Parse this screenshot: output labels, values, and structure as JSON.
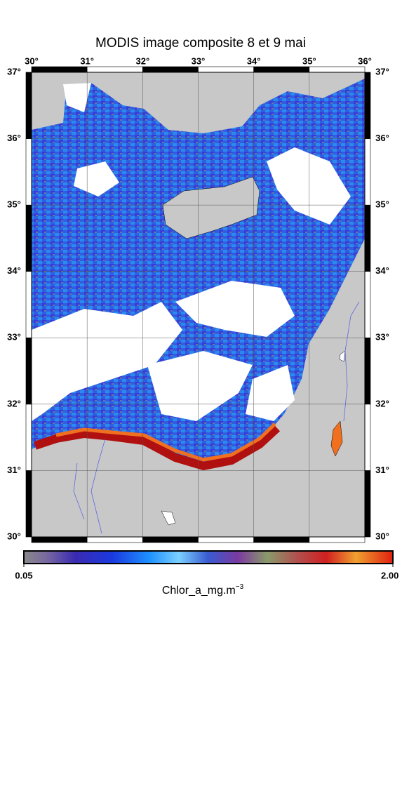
{
  "map": {
    "title": "MODIS image composite 8 et 9 mai",
    "lon": {
      "lim": [
        30,
        36
      ],
      "ticks": [
        {
          "value": 30,
          "label": "30°"
        },
        {
          "value": 31,
          "label": "31°"
        },
        {
          "value": 32,
          "label": "32°"
        },
        {
          "value": 33,
          "label": "33°"
        },
        {
          "value": 34,
          "label": "34°"
        },
        {
          "value": 35,
          "label": "35°"
        },
        {
          "value": 36,
          "label": "36°"
        }
      ]
    },
    "lat": {
      "lim": [
        30,
        37
      ],
      "ticks": [
        {
          "value": 30,
          "label": "30°"
        },
        {
          "value": 31,
          "label": "31°"
        },
        {
          "value": 32,
          "label": "32°"
        },
        {
          "value": 33,
          "label": "33°"
        },
        {
          "value": 34,
          "label": "34°"
        },
        {
          "value": 35,
          "label": "35°"
        },
        {
          "value": 36,
          "label": "36°"
        },
        {
          "value": 37,
          "label": "37°"
        }
      ]
    },
    "colorbar": {
      "lim": [
        0.05,
        2
      ],
      "ticks": [
        {
          "value": 0.05,
          "label": "0.05"
        },
        {
          "value": 2,
          "label": "2.00"
        }
      ],
      "label": "Chlor_a_mg.m",
      "label_superscript": "−3"
    }
  }
}
